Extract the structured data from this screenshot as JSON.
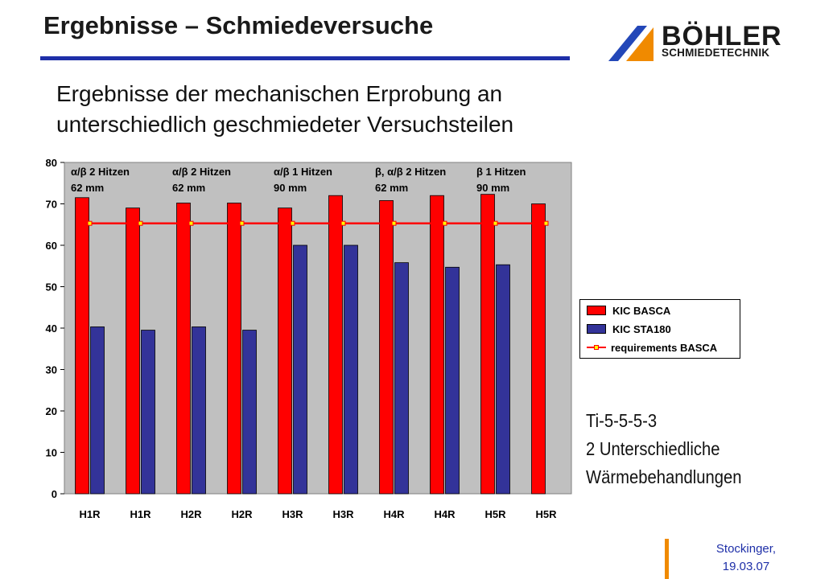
{
  "slide": {
    "title": "Ergebnisse – Schmiedeversuche",
    "subtitle_line1": "Ergebnisse der mechanischen Erprobung an",
    "subtitle_line2": "unterschiedlich geschmiedeter Versuchsteilen",
    "note_line1": "Ti-5-5-5-3",
    "note_line2": "2 Unterschiedliche",
    "note_line3": "Wärmebehandlungen",
    "footer_line1": "Stockinger,",
    "footer_line2": "19.03.07"
  },
  "logo": {
    "name": "BÖHLER",
    "tagline": "SCHMIEDETECHNIK",
    "colors": {
      "blue": "#2347b8",
      "orange": "#f08a00"
    }
  },
  "chart_data": {
    "type": "bar",
    "categories": [
      "H1R",
      "H1R",
      "H2R",
      "H2R",
      "H3R",
      "H3R",
      "H4R",
      "H4R",
      "H5R",
      "H5R"
    ],
    "series": [
      {
        "name": "KIC BASCA",
        "type": "bar",
        "color": "#ff0000",
        "values": [
          71.5,
          69,
          70.2,
          70.2,
          69,
          72,
          70.8,
          72,
          72.3,
          70
        ]
      },
      {
        "name": "KIC STA180",
        "type": "bar",
        "color": "#333399",
        "values": [
          40.3,
          39.5,
          40.3,
          39.5,
          60,
          60,
          55.8,
          54.7,
          55.3,
          null
        ]
      },
      {
        "name": "requirements BASCA",
        "type": "line",
        "color": "#ff0000",
        "marker_color": "#ffff00",
        "values": [
          65.3,
          65.3,
          65.3,
          65.3,
          65.3,
          65.3,
          65.3,
          65.3,
          65.3,
          65.3
        ]
      }
    ],
    "ylim": [
      0,
      80
    ],
    "yticks": [
      "0",
      "10",
      "20",
      "30",
      "40",
      "50",
      "60",
      "70",
      "80"
    ],
    "plot_background": "#c0c0c0",
    "grid": false,
    "legend_position": "right",
    "annotations": [
      {
        "line1": "α/β 2 Hitzen",
        "line2": "62 mm",
        "category_index": 0
      },
      {
        "line1": "α/β 2 Hitzen",
        "line2": "62 mm",
        "category_index": 2
      },
      {
        "line1": "α/β 1 Hitzen",
        "line2": "90 mm",
        "category_index": 4
      },
      {
        "line1": "β, α/β 2 Hitzen",
        "line2": "62 mm",
        "category_index": 6
      },
      {
        "line1": "β 1 Hitzen",
        "line2": "90 mm",
        "category_index": 8
      }
    ]
  }
}
